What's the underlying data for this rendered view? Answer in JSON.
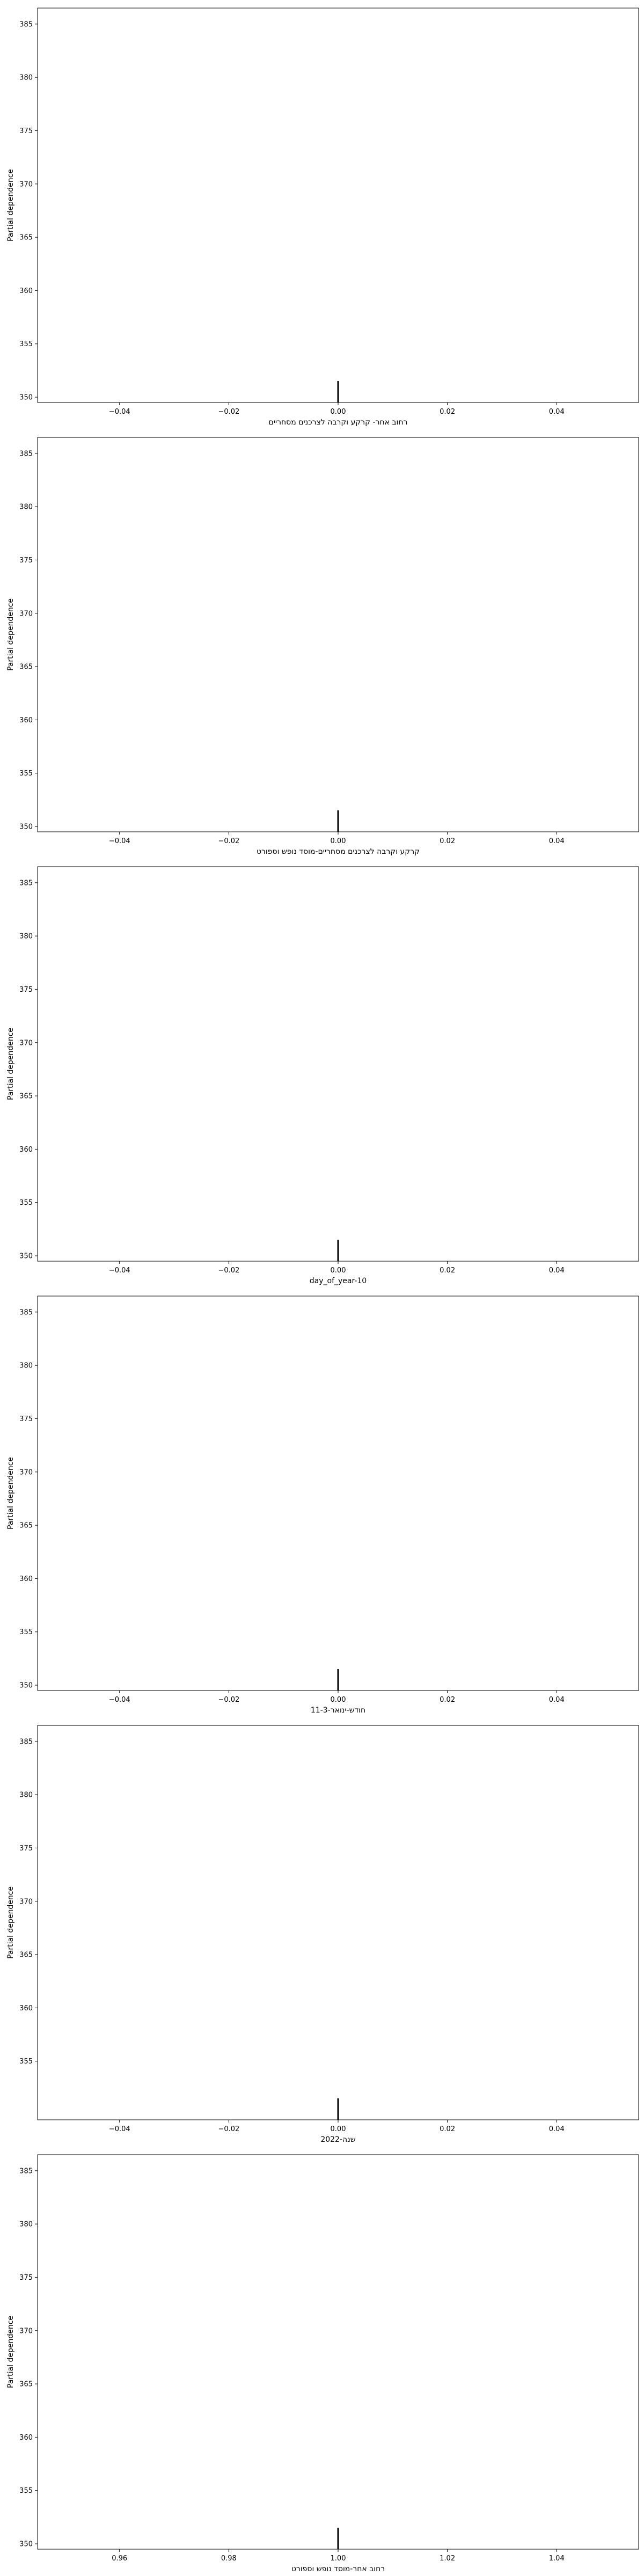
{
  "chart_data": [
    {
      "type": "partial_dependence",
      "xlabel": "רחוב אחר- קרקע וקרבה לצרכנים מסחריים",
      "ylabel": "Partial dependence",
      "xticks": [
        "−0.04",
        "−0.02",
        "0.00",
        "0.02",
        "0.04"
      ],
      "yticks": [
        "350",
        "355",
        "360",
        "365",
        "370",
        "375",
        "380",
        "385"
      ],
      "xlim": [
        -0.055,
        0.055
      ],
      "ylim": [
        349.5,
        386.5
      ],
      "rug_x": [
        0.0
      ]
    },
    {
      "type": "partial_dependence",
      "xlabel": "קרקע וקרבה לצרכנים מסחריים-מוסד נופש וספורט",
      "ylabel": "Partial dependence",
      "xticks": [
        "−0.04",
        "−0.02",
        "0.00",
        "0.02",
        "0.04"
      ],
      "yticks": [
        "350",
        "355",
        "360",
        "365",
        "370",
        "375",
        "380",
        "385"
      ],
      "xlim": [
        -0.055,
        0.055
      ],
      "ylim": [
        349.5,
        386.5
      ],
      "rug_x": [
        0.0
      ]
    },
    {
      "type": "partial_dependence",
      "xlabel": "day_of_year-10",
      "ylabel": "Partial dependence",
      "xticks": [
        "−0.04",
        "−0.02",
        "0.00",
        "0.02",
        "0.04"
      ],
      "yticks": [
        "350",
        "355",
        "360",
        "365",
        "370",
        "375",
        "380",
        "385"
      ],
      "xlim": [
        -0.055,
        0.055
      ],
      "ylim": [
        349.5,
        386.5
      ],
      "rug_x": [
        0.0
      ]
    },
    {
      "type": "partial_dependence",
      "xlabel": "חודש-ינואר-11-3",
      "ylabel": "Partial dependence",
      "xticks": [
        "−0.04",
        "−0.02",
        "0.00",
        "0.02",
        "0.04"
      ],
      "yticks": [
        "350",
        "355",
        "360",
        "365",
        "370",
        "375",
        "380",
        "385"
      ],
      "xlim": [
        -0.055,
        0.055
      ],
      "ylim": [
        349.5,
        386.5
      ],
      "rug_x": [
        0.0
      ]
    },
    {
      "type": "partial_dependence",
      "xlabel": "שנה-2022",
      "ylabel": "Partial dependence",
      "xticks": [
        "−0.04",
        "−0.02",
        "0.00",
        "0.02",
        "0.04"
      ],
      "yticks": [
        "355",
        "360",
        "365",
        "370",
        "375",
        "380",
        "385"
      ],
      "xlim": [
        -0.055,
        0.055
      ],
      "ylim": [
        349.5,
        386.5
      ],
      "rug_x": [
        0.0
      ]
    },
    {
      "type": "partial_dependence",
      "xlabel": "רחוב אחר-מוסד נופש וספורט",
      "ylabel": "Partial dependence",
      "xticks": [
        "0.96",
        "0.98",
        "1.00",
        "1.02",
        "1.04"
      ],
      "yticks": [
        "350",
        "355",
        "360",
        "365",
        "370",
        "375",
        "380",
        "385"
      ],
      "xlim": [
        0.945,
        1.055
      ],
      "ylim": [
        349.5,
        386.5
      ],
      "rug_x": [
        1.0
      ]
    }
  ]
}
